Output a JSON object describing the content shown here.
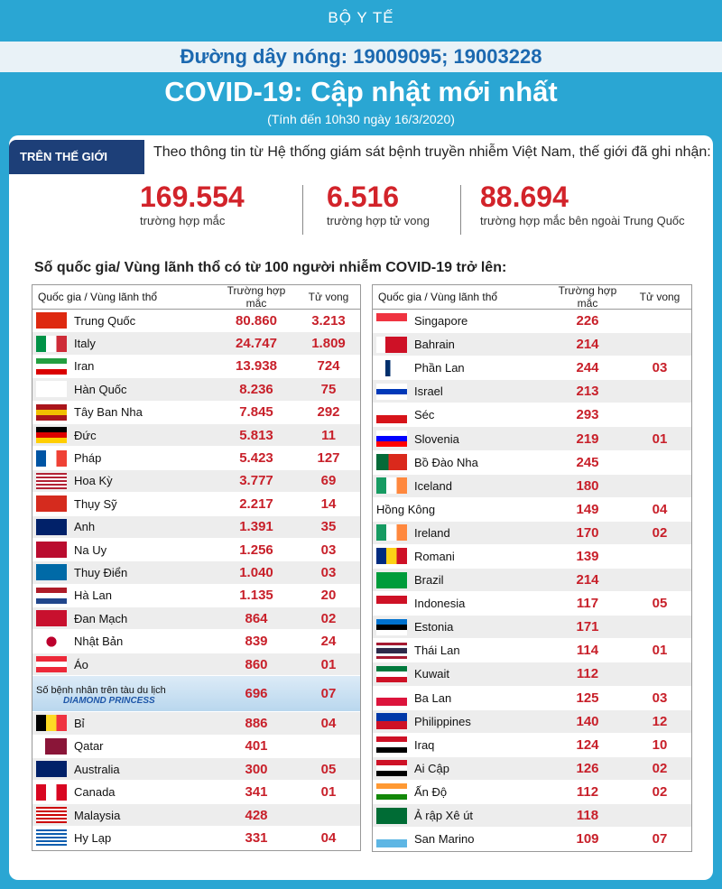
{
  "header": {
    "org": "BỘ Y TẾ",
    "hotline": "Đường dây nóng: 19009095; 19003228",
    "title": "COVID-19: Cập nhật mới nhất",
    "subtitle": "(Tính đến 10h30 ngày 16/3/2020)"
  },
  "world": {
    "tab": "TRÊN THẾ GIỚI",
    "intro": "Theo thông tin từ Hệ thống giám sát bệnh truyền nhiễm Việt Nam, thế giới đã ghi nhận:",
    "stats": [
      {
        "value": "169.554",
        "label": "trường hợp mắc"
      },
      {
        "value": "6.516",
        "label": "trường hợp tử vong"
      },
      {
        "value": "88.694",
        "label": "trường hợp  mắc bên ngoài Trung Quốc"
      }
    ]
  },
  "table_title": "Số quốc gia/ Vùng lãnh thổ có từ 100 người  nhiễm COVID-19 trở lên:",
  "left_table": {
    "columns": [
      "Quốc gia / Vùng lãnh thổ",
      "Trường hợp mắc",
      "Tử vong"
    ],
    "rows": [
      {
        "country": "Trung Quốc",
        "cases": "80.860",
        "deaths": "3.213"
      },
      {
        "country": "Italy",
        "cases": "24.747",
        "deaths": "1.809"
      },
      {
        "country": "Iran",
        "cases": "13.938",
        "deaths": "724"
      },
      {
        "country": "Hàn Quốc",
        "cases": "8.236",
        "deaths": "75"
      },
      {
        "country": "Tây Ban Nha",
        "cases": "7.845",
        "deaths": "292"
      },
      {
        "country": "Đức",
        "cases": "5.813",
        "deaths": "11"
      },
      {
        "country": "Pháp",
        "cases": "5.423",
        "deaths": "127"
      },
      {
        "country": "Hoa Kỳ",
        "cases": "3.777",
        "deaths": "69"
      },
      {
        "country": "Thụy Sỹ",
        "cases": "2.217",
        "deaths": "14"
      },
      {
        "country": "Anh",
        "cases": "1.391",
        "deaths": "35"
      },
      {
        "country": "Na Uy",
        "cases": "1.256",
        "deaths": "03"
      },
      {
        "country": "Thuy Điển",
        "cases": "1.040",
        "deaths": "03"
      },
      {
        "country": "Hà Lan",
        "cases": "1.135",
        "deaths": "20"
      },
      {
        "country": "Đan Mạch",
        "cases": "864",
        "deaths": "02"
      },
      {
        "country": "Nhật Bản",
        "cases": "839",
        "deaths": "24"
      },
      {
        "country": "Áo",
        "cases": "860",
        "deaths": "01"
      },
      {
        "country": "Số bệnh nhân trên tàu du lịch",
        "ship": "DIAMOND PRINCESS",
        "cases": "696",
        "deaths": "07"
      },
      {
        "country": "Bỉ",
        "cases": "886",
        "deaths": "04"
      },
      {
        "country": "Qatar",
        "cases": "401",
        "deaths": null
      },
      {
        "country": "Australia",
        "cases": "300",
        "deaths": "05"
      },
      {
        "country": "Canada",
        "cases": "341",
        "deaths": "01"
      },
      {
        "country": "Malaysia",
        "cases": "428",
        "deaths": null
      },
      {
        "country": "Hy Lạp",
        "cases": "331",
        "deaths": "04"
      }
    ]
  },
  "right_table": {
    "columns": [
      "Quốc gia / Vùng lãnh thổ",
      "Trường hợp mắc",
      "Tử vong"
    ],
    "rows": [
      {
        "country": "Singapore",
        "cases": "226",
        "deaths": null
      },
      {
        "country": "Bahrain",
        "cases": "214",
        "deaths": null
      },
      {
        "country": "Phần Lan",
        "cases": "244",
        "deaths": "03"
      },
      {
        "country": "Israel",
        "cases": "213",
        "deaths": null
      },
      {
        "country": "Séc",
        "cases": "293",
        "deaths": null
      },
      {
        "country": "Slovenia",
        "cases": "219",
        "deaths": "01"
      },
      {
        "country": "Bồ Đào Nha",
        "cases": "245",
        "deaths": null
      },
      {
        "country": "Iceland",
        "cases": "180",
        "deaths": null
      },
      {
        "country": "Hồng Kông",
        "cases": "149",
        "deaths": "04"
      },
      {
        "country": "Ireland",
        "cases": "170",
        "deaths": "02"
      },
      {
        "country": "Romani",
        "cases": "139",
        "deaths": null
      },
      {
        "country": "Brazil",
        "cases": "214",
        "deaths": null
      },
      {
        "country": "Indonesia",
        "cases": "117",
        "deaths": "05"
      },
      {
        "country": "Estonia",
        "cases": "171",
        "deaths": null
      },
      {
        "country": "Thái Lan",
        "cases": "114",
        "deaths": "01"
      },
      {
        "country": "Kuwait",
        "cases": "112",
        "deaths": null
      },
      {
        "country": "Ba Lan",
        "cases": "125",
        "deaths": "03"
      },
      {
        "country": "Philippines",
        "cases": "140",
        "deaths": "12"
      },
      {
        "country": "Iraq",
        "cases": "124",
        "deaths": "10"
      },
      {
        "country": "Ai Cập",
        "cases": "126",
        "deaths": "02"
      },
      {
        "country": "Ấn Độ",
        "cases": "112",
        "deaths": "02"
      },
      {
        "country": "Ả rập Xê út",
        "cases": "118",
        "deaths": null
      },
      {
        "country": "San Marino",
        "cases": "109",
        "deaths": "07"
      }
    ]
  }
}
